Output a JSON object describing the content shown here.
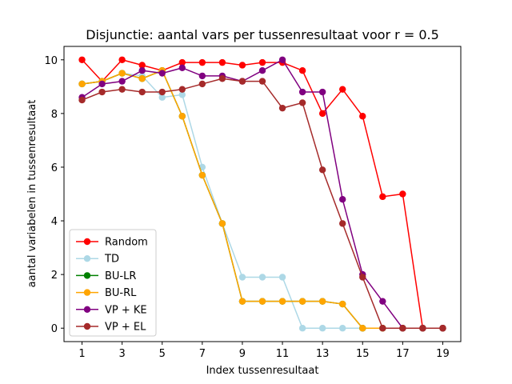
{
  "chart_data": {
    "type": "line",
    "title": "Disjunctie: aantal vars per tussenresultaat voor r = 0.5",
    "xlabel": "Index tussenresultaat",
    "ylabel": "aantal variabelen in tussenresultaat",
    "xlim": [
      0.1,
      19.9
    ],
    "ylim": [
      -0.5,
      10.5
    ],
    "xticks": [
      1,
      3,
      5,
      7,
      9,
      11,
      13,
      15,
      17,
      19
    ],
    "yticks": [
      0,
      2,
      4,
      6,
      8,
      10
    ],
    "grid": false,
    "legend_position": "lower-left",
    "x": [
      1,
      2,
      3,
      4,
      5,
      6,
      7,
      8,
      9,
      10,
      11,
      12,
      13,
      14,
      15,
      16,
      17,
      18,
      19
    ],
    "series": [
      {
        "name": "Random",
        "color": "#ff0000",
        "values": [
          10,
          9.2,
          10,
          9.8,
          9.6,
          9.9,
          9.9,
          9.9,
          9.8,
          9.9,
          9.9,
          9.6,
          8,
          8.9,
          7.9,
          4.9,
          5,
          0,
          0
        ]
      },
      {
        "name": "TD",
        "color": "#add8e6",
        "values": [
          9.1,
          9.2,
          9.5,
          9.4,
          8.6,
          8.7,
          6,
          3.9,
          1.9,
          1.9,
          1.9,
          0,
          0,
          0,
          0,
          0,
          0,
          0,
          0
        ]
      },
      {
        "name": "BU-LR",
        "color": "#008000",
        "values": [
          9.1,
          9.2,
          9.5,
          9.3,
          9.6,
          7.9,
          5.7,
          3.9,
          1,
          1,
          1,
          1,
          1,
          0.9,
          0,
          0,
          0,
          0,
          0
        ]
      },
      {
        "name": "BU-RL",
        "color": "#ffa500",
        "values": [
          9.1,
          9.2,
          9.5,
          9.3,
          9.6,
          7.9,
          5.7,
          3.9,
          1,
          1,
          1,
          1,
          1,
          0.9,
          0,
          0,
          0,
          0,
          0
        ]
      },
      {
        "name": "VP + KE",
        "color": "#800080",
        "values": [
          8.6,
          9.1,
          9.2,
          9.6,
          9.5,
          9.7,
          9.4,
          9.4,
          9.2,
          9.6,
          10,
          8.8,
          8.8,
          4.8,
          2,
          1,
          0,
          0,
          0
        ]
      },
      {
        "name": "VP + EL",
        "color": "#a52a2a",
        "values": [
          8.5,
          8.8,
          8.9,
          8.8,
          8.8,
          8.9,
          9.1,
          9.3,
          9.2,
          9.2,
          8.2,
          8.4,
          5.9,
          3.9,
          1.9,
          0,
          0,
          0,
          0
        ]
      }
    ]
  }
}
